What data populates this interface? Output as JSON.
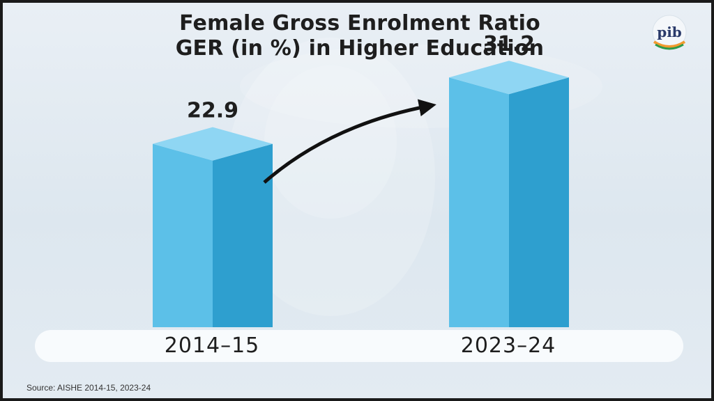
{
  "title_lines": [
    "Female Gross Enrolment Ratio",
    "GER (in %) in Higher Education"
  ],
  "source": "Source: AISHE 2014-15, 2023-24",
  "logo_text": "pib",
  "colors": {
    "bar_front": "#5cc0e8",
    "bar_side": "#2e9fcf",
    "bar_top": "#8fd6f3",
    "arrow": "#111111",
    "text": "#1e1e1e"
  },
  "chart_data": {
    "type": "bar",
    "style": "3d-columns",
    "categories": [
      "2014-15",
      "2023-24"
    ],
    "values": [
      22.9,
      31.2
    ],
    "value_labels": [
      "22.9",
      "31.2"
    ],
    "category_labels": [
      "2014–15",
      "2023–24"
    ],
    "title": "Female Gross Enrolment Ratio GER (in %) in Higher Education",
    "ylim": [
      0,
      40
    ],
    "grid": false,
    "legend": "none",
    "annotation": "upward-arrow"
  }
}
